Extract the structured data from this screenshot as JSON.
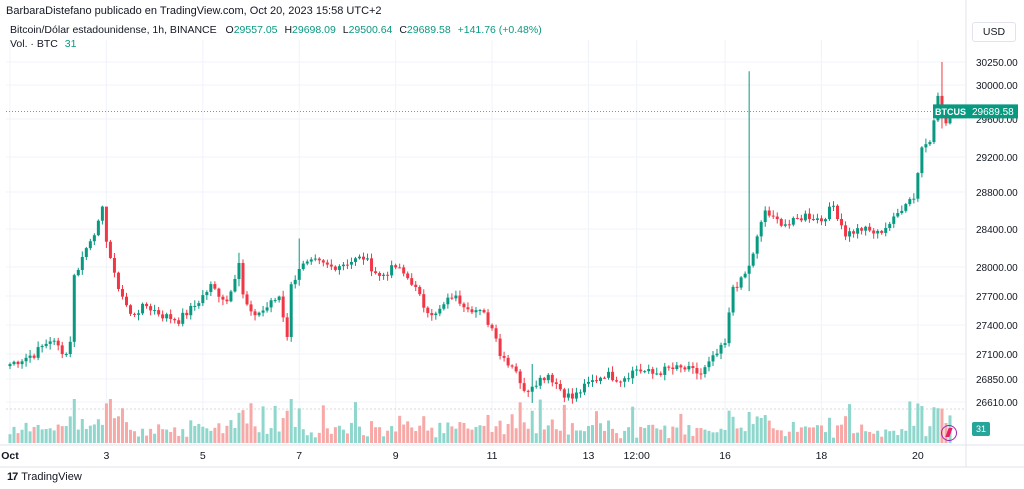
{
  "header": {
    "publisher": "BarbaraDistefano publicado en TradingView.com, Oct 20, 2023 15:58 UTC+2"
  },
  "legend": {
    "symbol": "Bitcoin/Dólar estadounidense, 1h, BINANCE",
    "o_label": "O",
    "o_value": "29557.05",
    "h_label": "H",
    "h_value": "29698.09",
    "l_label": "L",
    "l_value": "29500.64",
    "c_label": "C",
    "c_value": "29689.58",
    "change": "+141.76 (+0.48%)",
    "volume_label": "Vol. · BTC",
    "volume_value": "31"
  },
  "controls": {
    "currency_button": "USD"
  },
  "branding": {
    "logo_text": "TradingView",
    "logo_mark": "17"
  },
  "colors": {
    "up": "#089981",
    "down": "#f23645",
    "vol_up": "#8fd6cc",
    "vol_down": "#f7a9a7",
    "grid": "#f0f3fa",
    "axis_text": "#131722"
  },
  "chart_data": {
    "type": "candlestick",
    "symbol": "BTCUSD",
    "last_price_label": "BTCUSD",
    "last_price": "29689.58",
    "volume_last": "31",
    "ylim": [
      26450,
      30450
    ],
    "y_ticks": [
      "30250.00",
      "30000.00",
      "29600.00",
      "29200.00",
      "28800.00",
      "28400.00",
      "28000.00",
      "27700.00",
      "27400.00",
      "27100.00",
      "26850.00",
      "26610.00"
    ],
    "y_tick_values": [
      30250,
      30000,
      29600,
      29200,
      28800,
      28400,
      28000,
      27700,
      27400,
      27100,
      26850,
      26610
    ],
    "x_ticks": [
      "Oct",
      "3",
      "5",
      "7",
      "9",
      "11",
      "13",
      "12:00",
      "16",
      "18",
      "20"
    ],
    "x_tick_index": [
      0,
      24,
      48,
      72,
      96,
      120,
      144,
      156,
      178,
      202,
      226
    ],
    "anchors": [
      [
        0,
        27000
      ],
      [
        6,
        27100
      ],
      [
        10,
        27250
      ],
      [
        14,
        27100
      ],
      [
        15,
        27250
      ],
      [
        16,
        27900
      ],
      [
        20,
        28300
      ],
      [
        22,
        28450
      ],
      [
        23,
        28600
      ],
      [
        24,
        28300
      ],
      [
        26,
        27900
      ],
      [
        28,
        27700
      ],
      [
        30,
        27500
      ],
      [
        34,
        27600
      ],
      [
        38,
        27500
      ],
      [
        42,
        27450
      ],
      [
        46,
        27600
      ],
      [
        50,
        27800
      ],
      [
        54,
        27650
      ],
      [
        57,
        28050
      ],
      [
        58,
        27700
      ],
      [
        60,
        27500
      ],
      [
        63,
        27550
      ],
      [
        67,
        27700
      ],
      [
        69,
        27300
      ],
      [
        70,
        27800
      ],
      [
        72,
        28000
      ],
      [
        76,
        28050
      ],
      [
        80,
        28000
      ],
      [
        84,
        28050
      ],
      [
        88,
        28100
      ],
      [
        92,
        27900
      ],
      [
        96,
        28000
      ],
      [
        100,
        27850
      ],
      [
        103,
        27600
      ],
      [
        106,
        27500
      ],
      [
        110,
        27700
      ],
      [
        114,
        27600
      ],
      [
        118,
        27500
      ],
      [
        121,
        27300
      ],
      [
        122,
        27100
      ],
      [
        126,
        26950
      ],
      [
        128,
        26700
      ],
      [
        130,
        26800
      ],
      [
        134,
        26900
      ],
      [
        138,
        26700
      ],
      [
        140,
        26650
      ],
      [
        144,
        26800
      ],
      [
        148,
        26900
      ],
      [
        152,
        26850
      ],
      [
        156,
        26950
      ],
      [
        160,
        26900
      ],
      [
        164,
        26950
      ],
      [
        168,
        26950
      ],
      [
        172,
        26900
      ],
      [
        175,
        27050
      ],
      [
        178,
        27200
      ],
      [
        180,
        27800
      ],
      [
        182,
        27850
      ],
      [
        184,
        28000
      ],
      [
        186,
        28300
      ],
      [
        188,
        28600
      ],
      [
        190,
        28500
      ],
      [
        194,
        28450
      ],
      [
        198,
        28550
      ],
      [
        202,
        28500
      ],
      [
        205,
        28650
      ],
      [
        208,
        28350
      ],
      [
        212,
        28400
      ],
      [
        216,
        28350
      ],
      [
        220,
        28500
      ],
      [
        223,
        28700
      ],
      [
        225,
        28750
      ],
      [
        227,
        29300
      ],
      [
        229,
        29400
      ],
      [
        231,
        29850
      ],
      [
        233,
        29550
      ],
      [
        234,
        29690
      ]
    ],
    "spikes": [
      [
        184,
        30150,
        27750
      ],
      [
        232,
        30250,
        29500
      ],
      [
        24,
        28600,
        28200
      ],
      [
        57,
        28150,
        27800
      ],
      [
        72,
        28300,
        27900
      ],
      [
        130,
        27000,
        26600
      ]
    ]
  }
}
